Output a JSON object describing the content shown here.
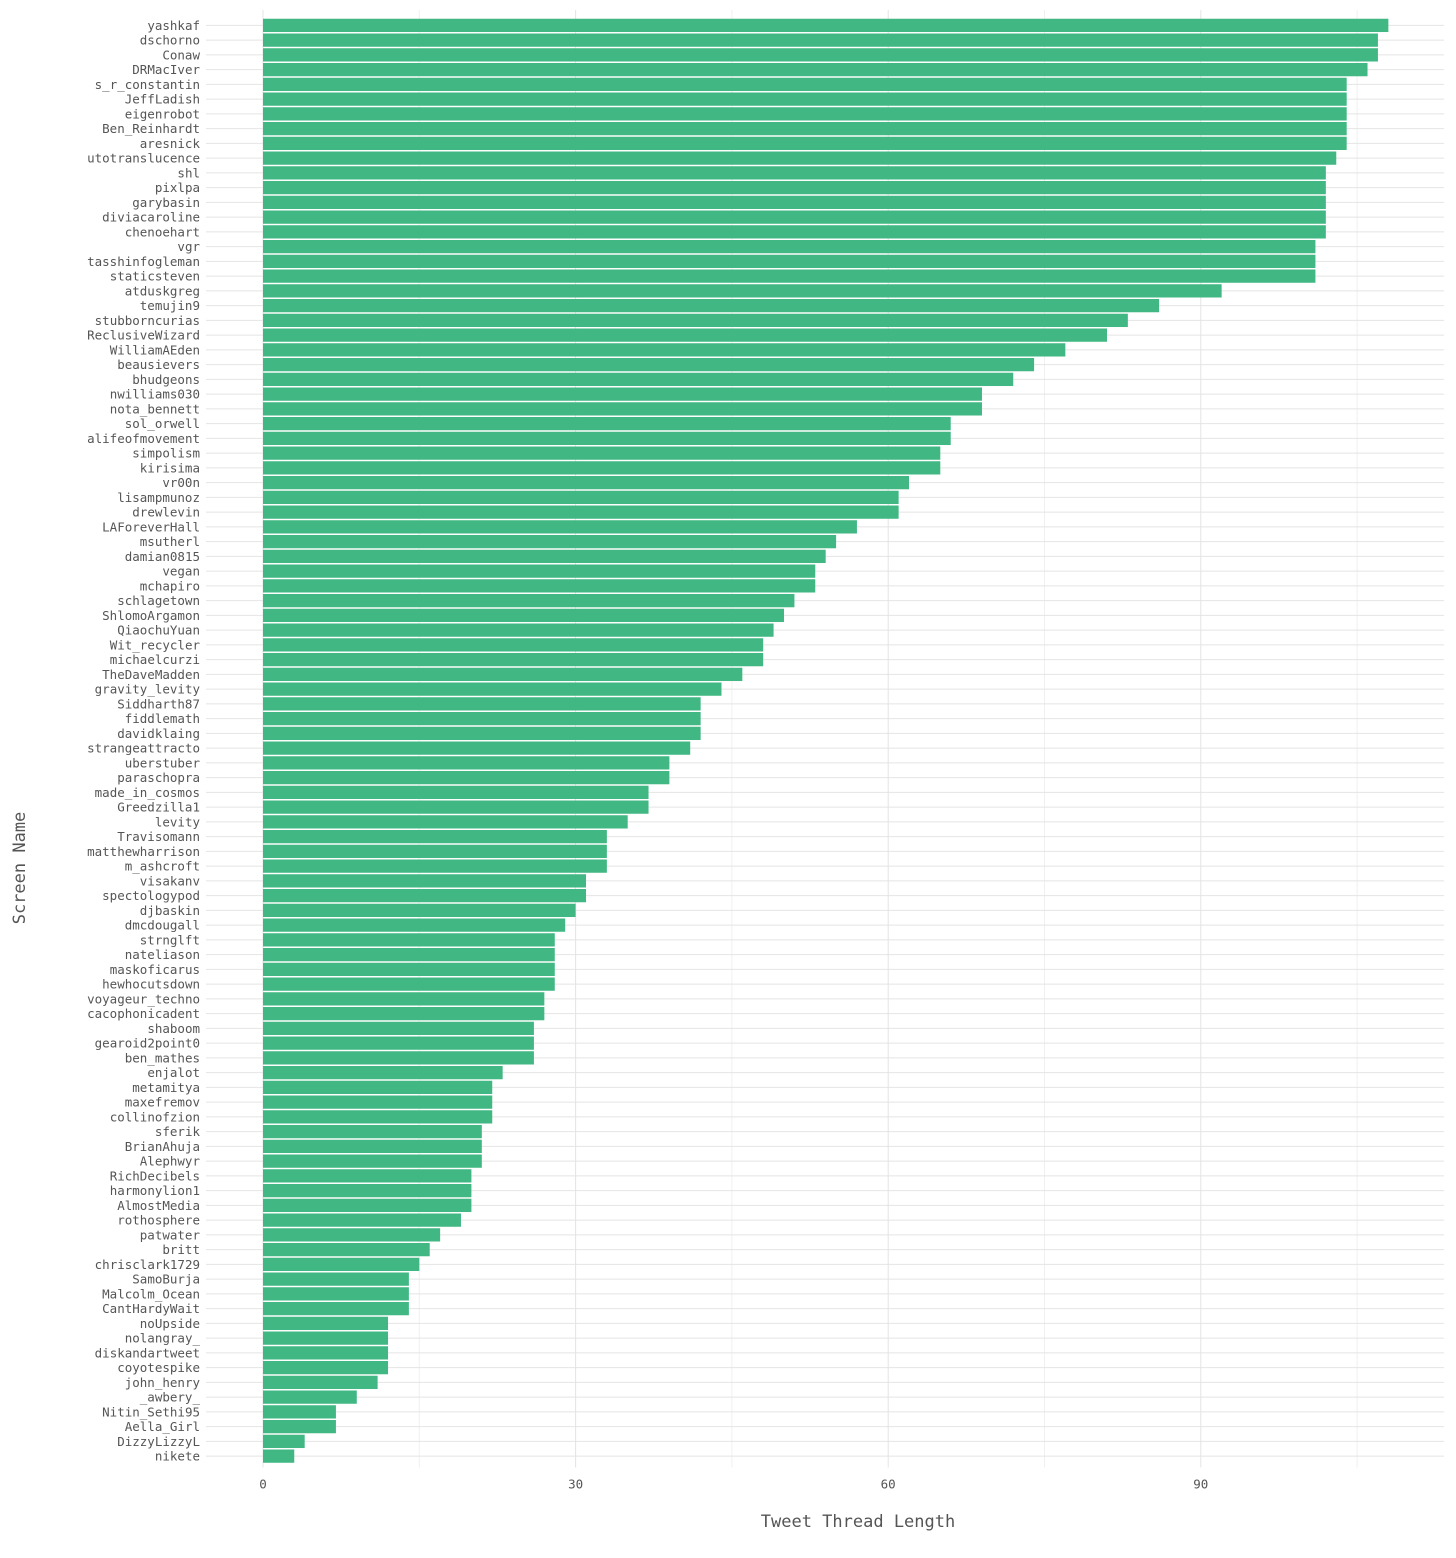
{
  "chart_data": {
    "type": "bar",
    "orientation": "horizontal",
    "xlabel": "Tweet Thread Length",
    "ylabel": "Screen Name",
    "xlim": [
      0,
      113
    ],
    "xticks": [
      0,
      30,
      60,
      90
    ],
    "grid": true,
    "bar_color": "#41b883",
    "categories": [
      "yashkaf",
      "dschorno",
      "Conaw",
      "DRMacIver",
      "s_r_constantin",
      "JeffLadish",
      "eigenrobot",
      "Ben_Reinhardt",
      "aresnick",
      "utotranslucence",
      "shl",
      "pixlpa",
      "garybasin",
      "diviacaroline",
      "chenoehart",
      "vgr",
      "tasshinfogleman",
      "staticsteven",
      "atduskgreg",
      "temujin9",
      "stubborncurias",
      "ReclusiveWizard",
      "WilliamAEden",
      "beausievers",
      "bhudgeons",
      "nwilliams030",
      "nota_bennett",
      "sol_orwell",
      "alifeofmovement",
      "simpolism",
      "kirisima",
      "vr00n",
      "lisampmunoz",
      "drewlevin",
      "LAForeverHall",
      "msutherl",
      "damian0815",
      "vegan",
      "mchapiro",
      "schlagetown",
      "ShlomoArgamon",
      "QiaochuYuan",
      "Wit_recycler",
      "michaelcurzi",
      "TheDaveMadden",
      "gravity_levity",
      "Siddharth87",
      "fiddlemath",
      "davidklaing",
      "strangeattracto",
      "uberstuber",
      "paraschopra",
      "made_in_cosmos",
      "Greedzilla1",
      "levity",
      "Travisomann",
      "matthewharrison",
      "m_ashcroft",
      "visakanv",
      "spectologypod",
      "djbaskin",
      "dmcdougall",
      "strnglft",
      "nateliason",
      "maskoficarus",
      "hewhocutsdown",
      "voyageur_techno",
      "cacophonicadent",
      "shaboom",
      "gearoid2point0",
      "ben_mathes",
      "enjalot",
      "metamitya",
      "maxefremov",
      "collinofzion",
      "sferik",
      "BrianAhuja",
      "Alephwyr",
      "RichDecibels",
      "harmonylion1",
      "AlmostMedia",
      "rothosphere",
      "patwater",
      "britt",
      "chrisclark1729",
      "SamoBurja",
      "Malcolm_Ocean",
      "CantHardyWait",
      "noUpside",
      "nolangray_",
      "diskandartweet",
      "coyotespike",
      "john_henry",
      "_awbery_",
      "Nitin_Sethi95",
      "Aella_Girl",
      "DizzyLizzyL",
      "nikete"
    ],
    "values": [
      108,
      107,
      107,
      106,
      104,
      104,
      104,
      104,
      104,
      103,
      102,
      102,
      102,
      102,
      102,
      101,
      101,
      101,
      92,
      86,
      83,
      81,
      77,
      74,
      72,
      69,
      69,
      66,
      66,
      65,
      65,
      62,
      61,
      61,
      57,
      55,
      54,
      53,
      53,
      51,
      50,
      49,
      48,
      48,
      46,
      44,
      42,
      42,
      42,
      41,
      39,
      39,
      37,
      37,
      35,
      33,
      33,
      33,
      31,
      31,
      30,
      29,
      28,
      28,
      28,
      28,
      27,
      27,
      26,
      26,
      26,
      23,
      22,
      22,
      22,
      21,
      21,
      21,
      20,
      20,
      20,
      19,
      17,
      16,
      15,
      14,
      14,
      14,
      12,
      12,
      12,
      12,
      11,
      9,
      7,
      7,
      4,
      3
    ]
  }
}
